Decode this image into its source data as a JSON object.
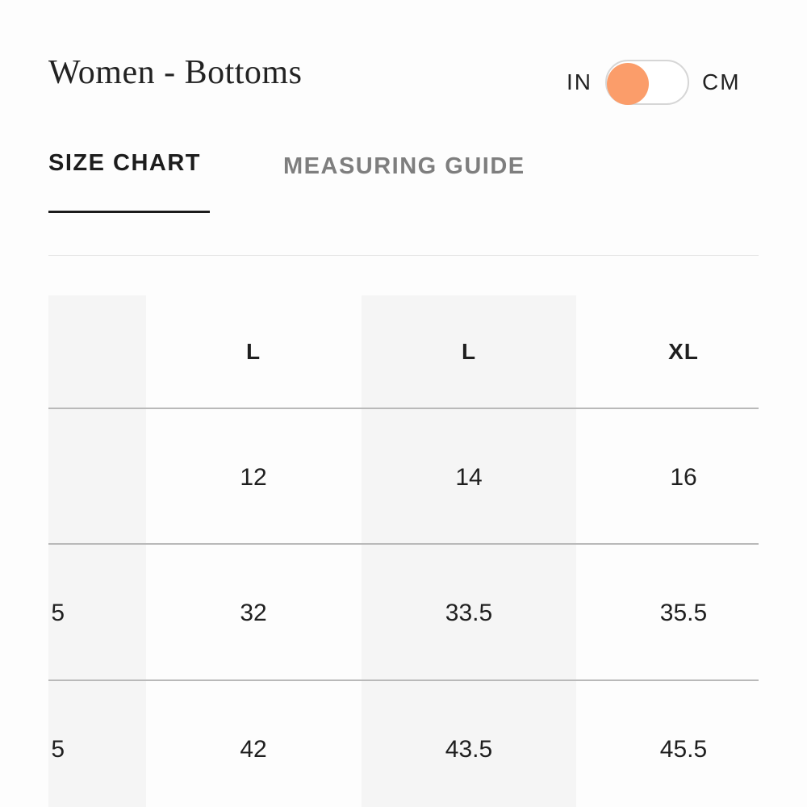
{
  "header": {
    "title": "Women - Bottoms",
    "unit_left": "IN",
    "unit_right": "CM",
    "toggle_accent": "#fb9d6a"
  },
  "tabs": [
    {
      "label": "SIZE CHART",
      "active": true
    },
    {
      "label": "MEASURING GUIDE",
      "active": false
    }
  ],
  "table": {
    "partial_column": [
      "",
      ")",
      "5",
      "5"
    ],
    "columns": [
      {
        "header": "L",
        "values": [
          "12",
          "32",
          "42"
        ]
      },
      {
        "header": "L",
        "values": [
          "14",
          "33.5",
          "43.5"
        ]
      },
      {
        "header": "XL",
        "values": [
          "16",
          "35.5",
          "45.5"
        ]
      }
    ]
  }
}
